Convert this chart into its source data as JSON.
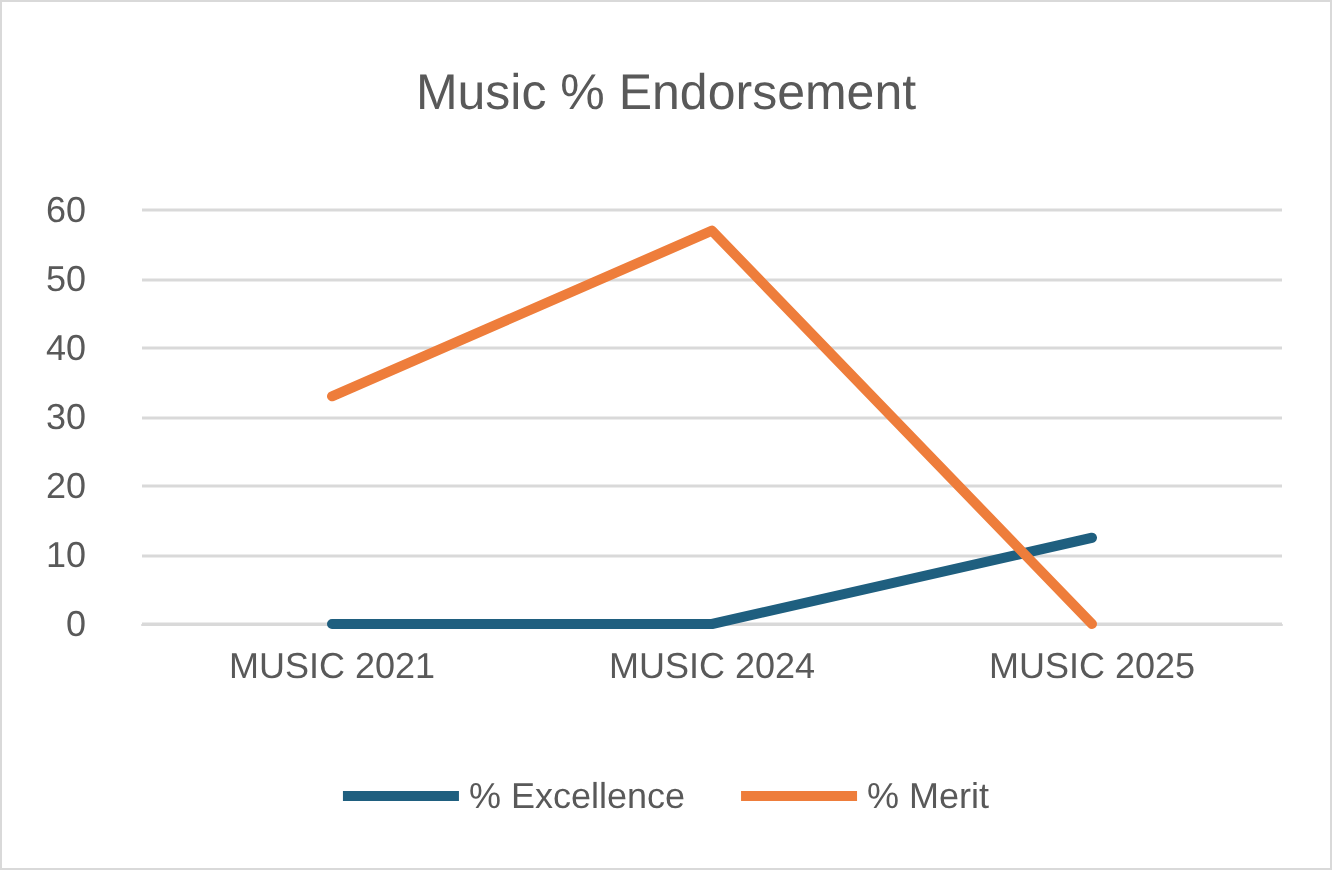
{
  "chart_data": {
    "type": "line",
    "title": "Music % Endorsement",
    "categories": [
      "MUSIC 2021",
      "MUSIC 2024",
      "MUSIC 2025"
    ],
    "series": [
      {
        "name": "% Excellence",
        "color": "#1f5f7f",
        "values": [
          0,
          0,
          12.5
        ]
      },
      {
        "name": "% Merit",
        "color": "#ee7d3b",
        "values": [
          33,
          57,
          0
        ]
      }
    ],
    "ylim": [
      0,
      60
    ],
    "yticks": [
      0,
      10,
      20,
      30,
      40,
      50,
      60
    ],
    "grid": "y",
    "legend": "bottom",
    "marker": "none",
    "line_style": "solid"
  }
}
